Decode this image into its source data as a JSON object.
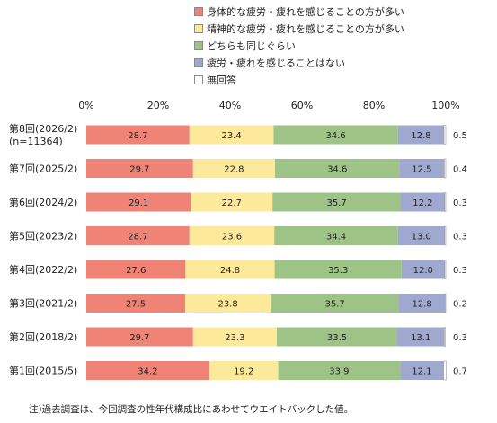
{
  "chart_data": {
    "type": "bar",
    "orientation": "horizontal",
    "stacked": true,
    "title": "",
    "xlabel": "",
    "ylabel": "",
    "xlim": [
      0,
      100
    ],
    "xticks": [
      "0%",
      "20%",
      "40%",
      "60%",
      "80%",
      "100%"
    ],
    "legend_position": "top-right",
    "grid": false,
    "categories": [
      {
        "label": "第8回(2026/2)",
        "sublabel": "(n=11364)"
      },
      {
        "label": "第7回(2025/2)"
      },
      {
        "label": "第6回(2024/2)"
      },
      {
        "label": "第5回(2023/2)"
      },
      {
        "label": "第4回(2022/2)"
      },
      {
        "label": "第3回(2021/2)"
      },
      {
        "label": "第2回(2018/2)"
      },
      {
        "label": "第1回(2015/5)"
      }
    ],
    "series": [
      {
        "name": "身体的な疲労・疲れを感じることの方が多い",
        "color": "#ef8376",
        "values": [
          28.7,
          29.7,
          29.1,
          28.7,
          27.6,
          27.5,
          29.7,
          34.2
        ],
        "labels": [
          "28.7",
          "29.7",
          "29.1",
          "28.7",
          "27.6",
          "27.5",
          "29.7",
          "34.2"
        ]
      },
      {
        "name": "精神的な疲労・疲れを感じることの方が多い",
        "color": "#fde99a",
        "values": [
          23.4,
          22.8,
          22.7,
          23.6,
          24.8,
          23.8,
          23.3,
          19.2
        ],
        "labels": [
          "23.4",
          "22.8",
          "22.7",
          "23.6",
          "24.8",
          "23.8",
          "23.3",
          "19.2"
        ]
      },
      {
        "name": "どちらも同じぐらい",
        "color": "#9dc387",
        "values": [
          34.6,
          34.6,
          35.7,
          34.4,
          35.3,
          35.7,
          33.5,
          33.9
        ],
        "labels": [
          "34.6",
          "34.6",
          "35.7",
          "34.4",
          "35.3",
          "35.7",
          "33.5",
          "33.9"
        ]
      },
      {
        "name": "疲労・疲れを感じることはない",
        "color": "#9fa8cf",
        "values": [
          12.8,
          12.5,
          12.2,
          13.0,
          12.0,
          12.8,
          13.1,
          12.1
        ],
        "labels": [
          "12.8",
          "12.5",
          "12.2",
          "13.0",
          "12.0",
          "12.8",
          "13.1",
          "12.1"
        ]
      },
      {
        "name": "無回答",
        "color": "#ffffff",
        "values": [
          0.5,
          0.4,
          0.3,
          0.3,
          0.3,
          0.2,
          0.3,
          0.7
        ],
        "labels": [
          "0.5",
          "0.4",
          "0.3",
          "0.3",
          "0.3",
          "0.2",
          "0.3",
          "0.7"
        ]
      }
    ],
    "footnote": "注)過去調査は、今回調査の性年代構成比にあわせてウエイトバックした値。"
  }
}
